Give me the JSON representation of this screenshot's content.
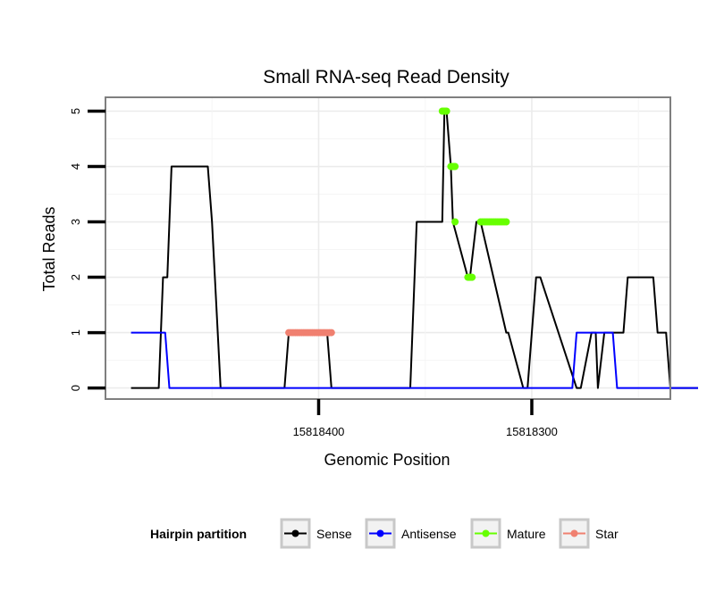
{
  "chart_data": {
    "type": "line",
    "title": "Small RNA-seq Read Density",
    "xlabel": "Genomic Position",
    "ylabel": "Total Reads",
    "x_reversed": true,
    "xlim": [
      15818500,
      15818235
    ],
    "ylim": [
      -0.2,
      5.25
    ],
    "x_ticks": [
      15818400,
      15818300
    ],
    "x_tick_labels": [
      "15818400",
      "15818300"
    ],
    "y_ticks": [
      0,
      1,
      2,
      3,
      4,
      5
    ],
    "y_tick_labels": [
      "0",
      "1",
      "2",
      "3",
      "4",
      "5"
    ],
    "grid": true,
    "legend": {
      "position": "bottom",
      "title": "Hairpin partition",
      "entries": [
        "Sense",
        "Antisense",
        "Mature",
        "Star"
      ]
    },
    "series": [
      {
        "name": "Sense",
        "color": "#000000",
        "style": "line",
        "x": [
          15818488,
          15818475,
          15818473,
          15818471,
          15818469,
          15818452,
          15818450,
          15818446,
          15818416,
          15818414,
          15818396,
          15818394,
          15818357,
          15818355,
          15818354,
          15818342,
          15818341,
          15818340,
          15818338,
          15818337,
          15818330,
          15818329,
          15818326,
          15818324,
          15818312,
          15818311,
          15818304,
          15818302,
          15818298,
          15818296,
          15818279,
          15818277,
          15818272,
          15818270,
          15818269,
          15818266,
          15818257,
          15818255,
          15818243,
          15818241,
          15818237,
          15818235,
          15818222
        ],
        "y": [
          0,
          0,
          2,
          2,
          4,
          4,
          3,
          0,
          0,
          1,
          1,
          0,
          0,
          2,
          3,
          3,
          5,
          5,
          4,
          3,
          2,
          2,
          3,
          3,
          1,
          1,
          0,
          0,
          2,
          2,
          0,
          0,
          1,
          1,
          0,
          1,
          1,
          2,
          2,
          1,
          1,
          0,
          0
        ]
      },
      {
        "name": "Antisense",
        "color": "#0000ff",
        "style": "line",
        "x": [
          15818488,
          15818472,
          15818470,
          15818281,
          15818279,
          15818262,
          15818260,
          15818222
        ],
        "y": [
          1,
          1,
          0,
          0,
          1,
          1,
          0,
          0
        ]
      },
      {
        "name": "Mature",
        "color": "#66ff00",
        "style": "points",
        "x": [
          15818342,
          15818341.5,
          15818341,
          15818340.5,
          15818340,
          15818338,
          15818337.5,
          15818337,
          15818336.5,
          15818336,
          15818336,
          15818330,
          15818329.5,
          15818329,
          15818328.5,
          15818328,
          15818324,
          15818323,
          15818322,
          15818321,
          15818320,
          15818319,
          15818318,
          15818317,
          15818316,
          15818315,
          15818314,
          15818313,
          15818312
        ],
        "y": [
          5,
          5,
          5,
          5,
          5,
          4,
          4,
          4,
          4,
          4,
          3,
          2,
          2,
          2,
          2,
          2,
          3,
          3,
          3,
          3,
          3,
          3,
          3,
          3,
          3,
          3,
          3,
          3,
          3
        ]
      },
      {
        "name": "Star",
        "color": "#f08070",
        "style": "points",
        "x": [
          15818414,
          15818413,
          15818412,
          15818411,
          15818410,
          15818409,
          15818408,
          15818407,
          15818406,
          15818405,
          15818404,
          15818403,
          15818402,
          15818401,
          15818400,
          15818399,
          15818398,
          15818397,
          15818396,
          15818395,
          15818394
        ],
        "y": [
          1,
          1,
          1,
          1,
          1,
          1,
          1,
          1,
          1,
          1,
          1,
          1,
          1,
          1,
          1,
          1,
          1,
          1,
          1,
          1,
          1
        ]
      }
    ]
  }
}
